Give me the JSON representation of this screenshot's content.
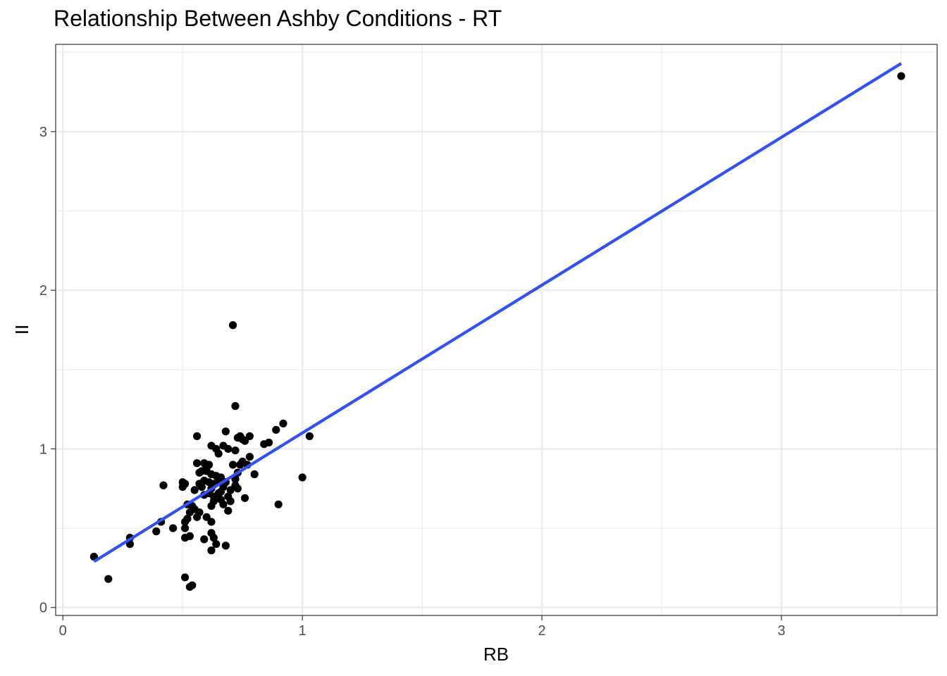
{
  "chart_data": {
    "type": "scatter",
    "title": "Relationship Between Ashby Conditions - RT",
    "xlabel": "RB",
    "ylabel": "II",
    "xlim": [
      -0.03,
      3.65
    ],
    "ylim": [
      -0.05,
      3.55
    ],
    "xticks": [
      0,
      1,
      2,
      3
    ],
    "yticks": [
      0,
      1,
      2,
      3
    ],
    "grid": true,
    "colors": {
      "points": "#000000",
      "fit_line": "#3050f8",
      "grid": "#ebebeb",
      "panel_border": "#333333"
    },
    "fit_line": {
      "x": [
        0.13,
        3.5
      ],
      "y": [
        0.29,
        3.43
      ]
    },
    "points": [
      [
        3.5,
        3.35
      ],
      [
        0.71,
        1.78
      ],
      [
        0.72,
        1.27
      ],
      [
        1.03,
        1.08
      ],
      [
        0.92,
        1.16
      ],
      [
        0.89,
        1.12
      ],
      [
        0.86,
        1.04
      ],
      [
        0.84,
        1.03
      ],
      [
        0.78,
        1.08
      ],
      [
        0.75,
        1.06
      ],
      [
        0.74,
        1.08
      ],
      [
        0.73,
        1.07
      ],
      [
        0.76,
        1.05
      ],
      [
        0.68,
        1.11
      ],
      [
        0.56,
        1.08
      ],
      [
        0.62,
        1.02
      ],
      [
        0.67,
        1.02
      ],
      [
        0.64,
        1.0
      ],
      [
        0.69,
        1.0
      ],
      [
        0.72,
        0.99
      ],
      [
        0.65,
        0.97
      ],
      [
        0.78,
        0.95
      ],
      [
        0.75,
        0.92
      ],
      [
        0.71,
        0.9
      ],
      [
        0.77,
        0.9
      ],
      [
        0.56,
        0.91
      ],
      [
        0.59,
        0.91
      ],
      [
        0.61,
        0.9
      ],
      [
        0.58,
        0.86
      ],
      [
        0.6,
        0.88
      ],
      [
        0.62,
        0.84
      ],
      [
        0.57,
        0.85
      ],
      [
        0.64,
        0.83
      ],
      [
        0.66,
        0.82
      ],
      [
        0.72,
        0.81
      ],
      [
        0.8,
        0.84
      ],
      [
        1.0,
        0.82
      ],
      [
        0.59,
        0.8
      ],
      [
        0.61,
        0.79
      ],
      [
        0.63,
        0.78
      ],
      [
        0.65,
        0.8
      ],
      [
        0.68,
        0.79
      ],
      [
        0.72,
        0.77
      ],
      [
        0.67,
        0.76
      ],
      [
        0.62,
        0.75
      ],
      [
        0.58,
        0.76
      ],
      [
        0.55,
        0.74
      ],
      [
        0.61,
        0.72
      ],
      [
        0.65,
        0.72
      ],
      [
        0.69,
        0.7
      ],
      [
        0.63,
        0.7
      ],
      [
        0.59,
        0.71
      ],
      [
        0.66,
        0.68
      ],
      [
        0.7,
        0.67
      ],
      [
        0.76,
        0.69
      ],
      [
        0.67,
        0.65
      ],
      [
        0.69,
        0.61
      ],
      [
        0.62,
        0.64
      ],
      [
        0.52,
        0.65
      ],
      [
        0.54,
        0.64
      ],
      [
        0.55,
        0.62
      ],
      [
        0.53,
        0.6
      ],
      [
        0.57,
        0.6
      ],
      [
        0.56,
        0.57
      ],
      [
        0.52,
        0.56
      ],
      [
        0.51,
        0.54
      ],
      [
        0.6,
        0.57
      ],
      [
        0.62,
        0.54
      ],
      [
        0.51,
        0.5
      ],
      [
        0.46,
        0.5
      ],
      [
        0.41,
        0.54
      ],
      [
        0.39,
        0.48
      ],
      [
        0.62,
        0.47
      ],
      [
        0.53,
        0.45
      ],
      [
        0.51,
        0.44
      ],
      [
        0.59,
        0.43
      ],
      [
        0.63,
        0.44
      ],
      [
        0.64,
        0.4
      ],
      [
        0.68,
        0.39
      ],
      [
        0.62,
        0.36
      ],
      [
        0.28,
        0.44
      ],
      [
        0.28,
        0.4
      ],
      [
        0.13,
        0.32
      ],
      [
        0.19,
        0.18
      ],
      [
        0.51,
        0.19
      ],
      [
        0.54,
        0.14
      ],
      [
        0.53,
        0.13
      ],
      [
        0.42,
        0.77
      ],
      [
        0.5,
        0.79
      ],
      [
        0.51,
        0.78
      ],
      [
        0.5,
        0.76
      ],
      [
        0.9,
        0.65
      ],
      [
        0.57,
        0.78
      ],
      [
        0.74,
        0.9
      ],
      [
        0.73,
        0.85
      ],
      [
        0.73,
        0.75
      ],
      [
        0.6,
        0.86
      ],
      [
        0.66,
        0.73
      ],
      [
        0.7,
        0.74
      ],
      [
        0.63,
        0.67
      ]
    ]
  }
}
